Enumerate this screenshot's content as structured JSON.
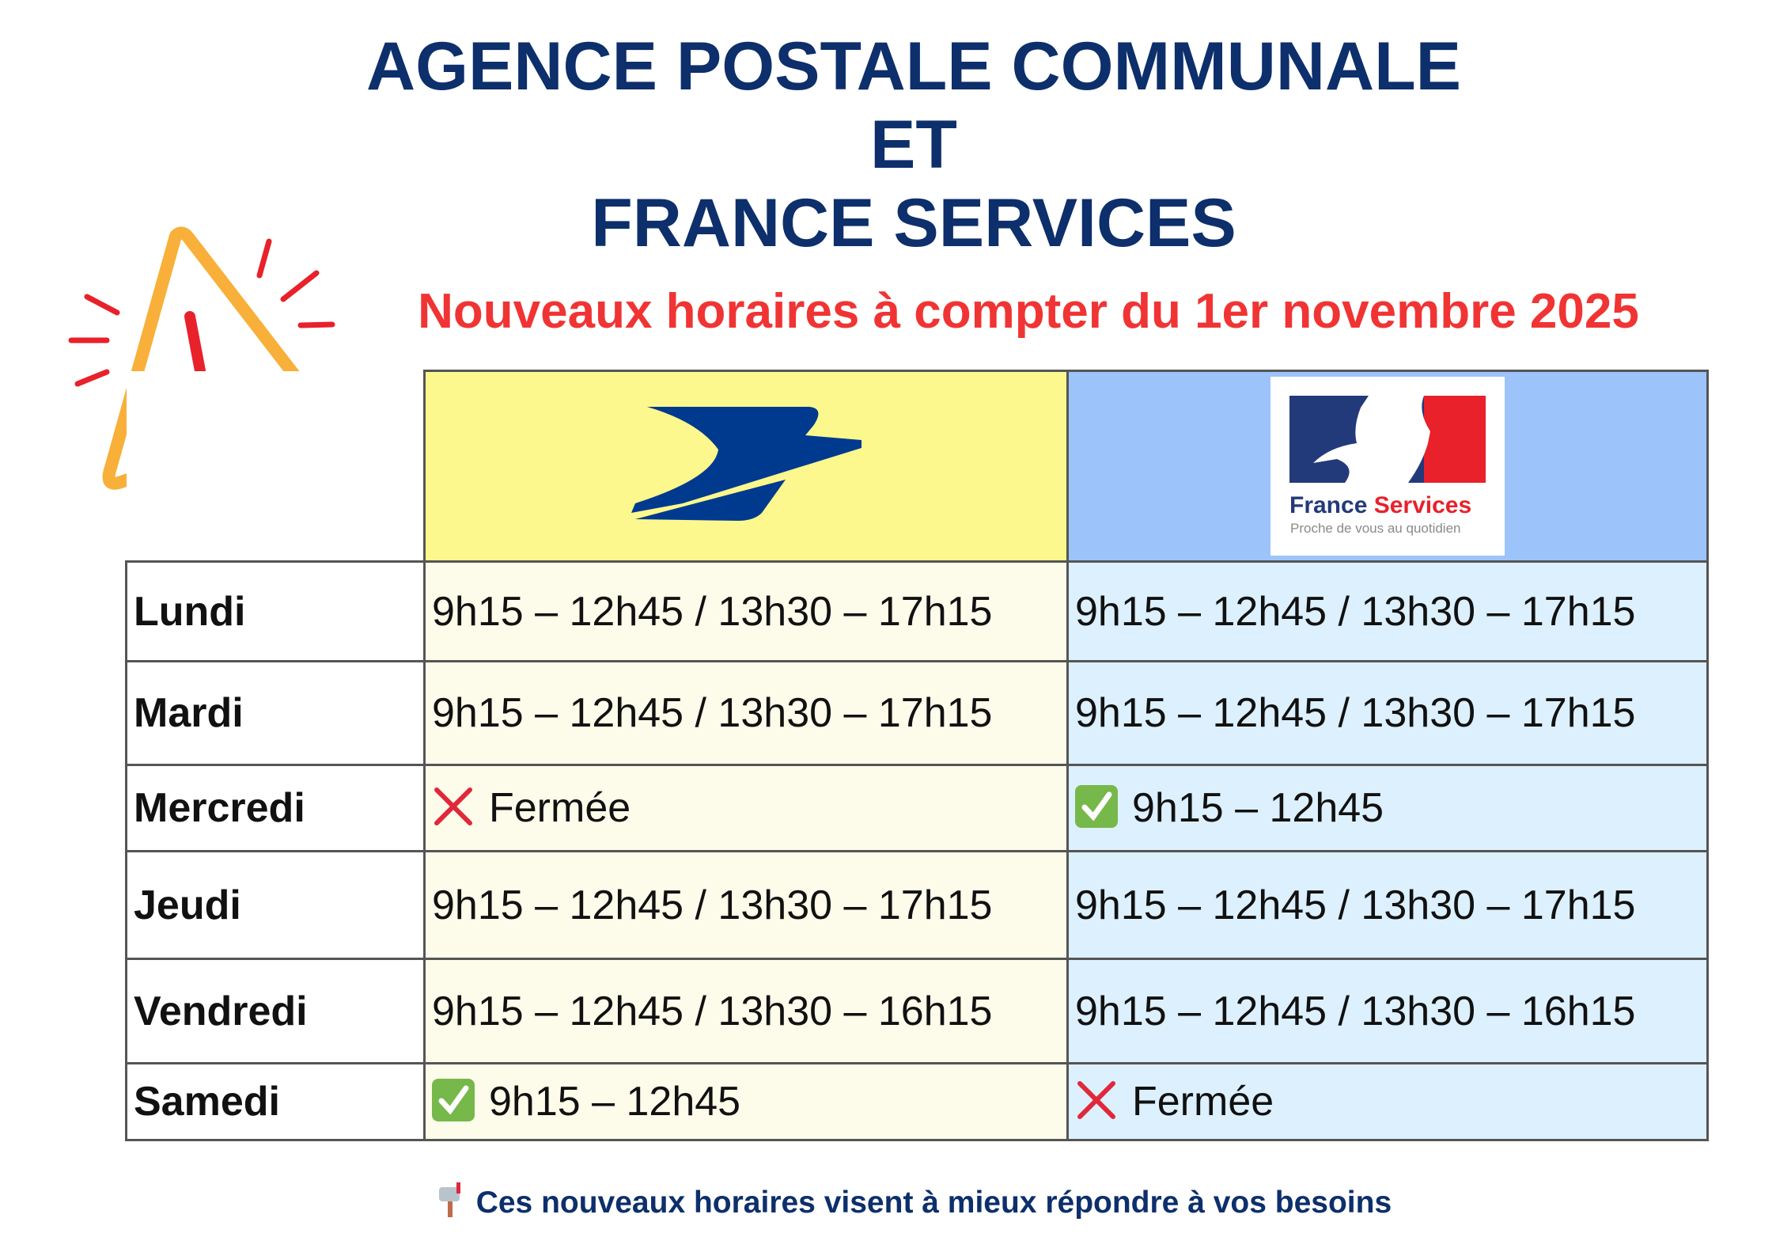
{
  "title": {
    "line1": "AGENCE POSTALE COMMUNALE",
    "line2": "ET",
    "line3": "FRANCE SERVICES"
  },
  "subtitle": "Nouveaux horaires à compter du 1er novembre 2025",
  "logos": {
    "la_poste": "La Poste",
    "france_services": {
      "name_part1": "France",
      "name_part2": "Services",
      "tagline": "Proche de vous au quotidien"
    }
  },
  "rows": [
    {
      "day": "Lundi",
      "la_poste": "9h15 – 12h45 / 13h30 – 17h15",
      "france_services": "9h15 – 12h45 / 13h30 – 17h15"
    },
    {
      "day": "Mardi",
      "la_poste": "9h15 – 12h45 / 13h30 – 17h15",
      "france_services": "9h15 – 12h45 / 13h30 – 17h15"
    },
    {
      "day": "Mercredi",
      "la_poste": "Fermée",
      "la_poste_icon": "cross-icon",
      "france_services": "9h15 – 12h45",
      "france_services_icon": "check-icon"
    },
    {
      "day": "Jeudi",
      "la_poste": "9h15 – 12h45 / 13h30 – 17h15",
      "france_services": "9h15 – 12h45 / 13h30 – 17h15"
    },
    {
      "day": "Vendredi",
      "la_poste": "9h15 – 12h45 / 13h30 – 16h15",
      "france_services": "9h15 – 12h45 / 13h30 – 16h15"
    },
    {
      "day": "Samedi",
      "la_poste": "9h15 – 12h45",
      "la_poste_icon": "check-icon",
      "france_services": "Fermée",
      "france_services_icon": "cross-icon"
    }
  ],
  "footer": {
    "icon": "mailbox-icon",
    "text": "Ces nouveaux horaires visent à mieux répondre à vos besoins"
  },
  "colors": {
    "title": "#0d2f6b",
    "subtitle": "#f03434",
    "la_poste_header": "#fcf88d",
    "france_services_header": "#9cc4fb",
    "la_poste_cells": "#fdfbea",
    "france_services_cells": "#dcf0fd"
  }
}
